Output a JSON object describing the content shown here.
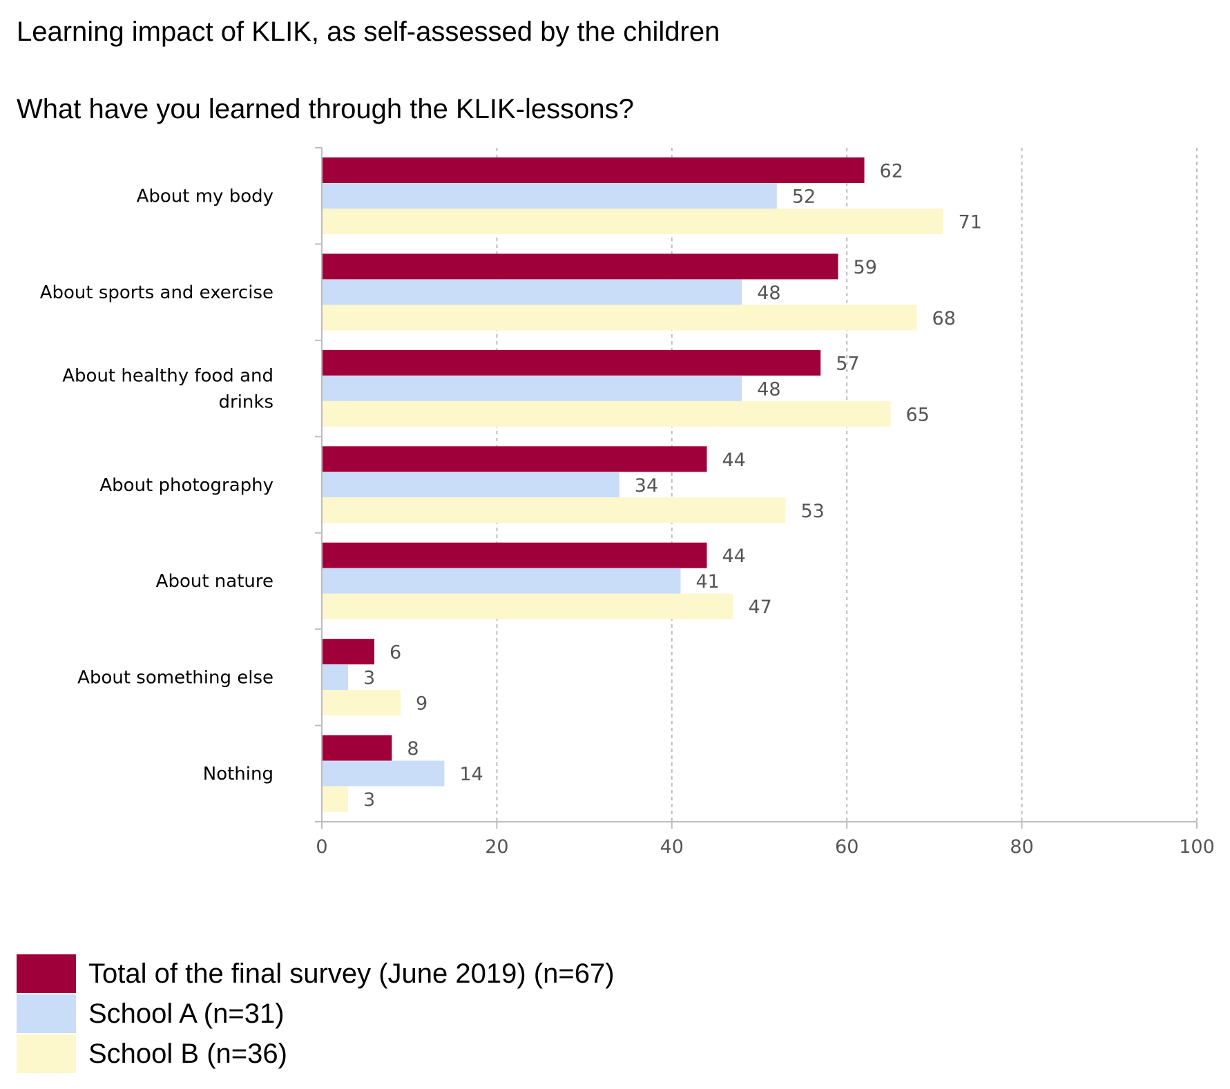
{
  "title": "Learning impact of KLIK, as self-assessed by the children",
  "chart_data": {
    "type": "bar",
    "orientation": "horizontal",
    "title": "What have you learned through the KLIK-lessons?",
    "categories": [
      "About my body",
      "About sports and exercise",
      "About healthy food and drinks",
      "About photography",
      "About nature",
      "About something else",
      "Nothing"
    ],
    "series": [
      {
        "name": "Total of the final survey (June 2019) (n=67)",
        "color": "#a0003a",
        "values": [
          62,
          59,
          57,
          44,
          44,
          6,
          8
        ]
      },
      {
        "name": "School A (n=31)",
        "color": "#c9dcf8",
        "values": [
          52,
          48,
          48,
          34,
          41,
          3,
          14
        ]
      },
      {
        "name": "School B (n=36)",
        "color": "#fdf7cc",
        "values": [
          71,
          68,
          65,
          53,
          47,
          9,
          3
        ]
      }
    ],
    "xlim": [
      0,
      100
    ],
    "xticks": [
      0,
      20,
      40,
      60,
      80,
      100
    ],
    "grid": true,
    "legend_position": "bottom-left",
    "xlabel": "",
    "ylabel": ""
  }
}
